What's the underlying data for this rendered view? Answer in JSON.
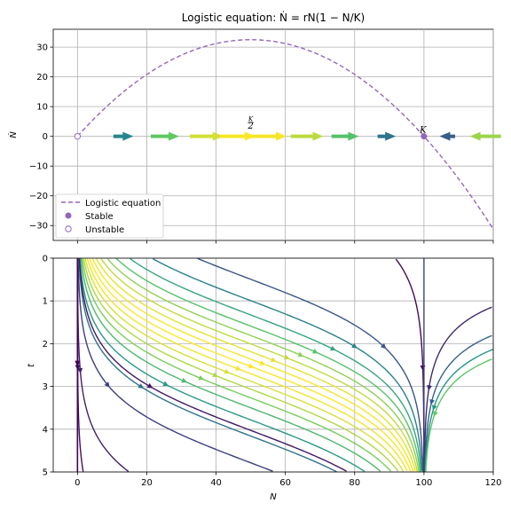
{
  "chart_data": [
    {
      "type": "line",
      "title": "Logistic equation: Ṅ = rN(1 − N/K)",
      "xlabel": "",
      "ylabel": "Ṅ",
      "xlim": [
        -7,
        120
      ],
      "ylim": [
        -35,
        36
      ],
      "xticks": [
        0,
        20,
        40,
        60,
        80,
        100,
        120
      ],
      "yticks": [
        -30,
        -20,
        -10,
        0,
        10,
        20,
        30
      ],
      "grid": true,
      "legend_placement": "lower-left",
      "params": {
        "r": 1.3,
        "K": 100
      },
      "series": [
        {
          "name": "Logistic equation",
          "style": "dashed",
          "color": "#9467bd"
        }
      ],
      "fixed_points": [
        {
          "name": "Stable",
          "x": 100,
          "y": 0,
          "filled": true
        },
        {
          "name": "Unstable",
          "x": 0,
          "y": 0,
          "filled": false
        }
      ],
      "annotations": [
        {
          "text": "K/2",
          "x": 50,
          "y": 0
        },
        {
          "text": "K",
          "x": 100,
          "y": 0
        }
      ],
      "flow_arrows": [
        {
          "x": 13,
          "dir": 1
        },
        {
          "x": 25,
          "dir": 1
        },
        {
          "x": 37,
          "dir": 1
        },
        {
          "x": 46,
          "dir": 1
        },
        {
          "x": 55,
          "dir": 1
        },
        {
          "x": 66,
          "dir": 1
        },
        {
          "x": 77,
          "dir": 1
        },
        {
          "x": 89,
          "dir": 1
        },
        {
          "x": 107,
          "dir": -1
        },
        {
          "x": 118,
          "dir": -1
        }
      ],
      "legend": [
        "Logistic equation",
        "Stable",
        "Unstable"
      ]
    },
    {
      "type": "line",
      "title": "",
      "xlabel": "N",
      "ylabel": "t",
      "xlim": [
        -7,
        120
      ],
      "ylim": [
        5,
        0
      ],
      "xticks": [
        0,
        20,
        40,
        60,
        80,
        100,
        120
      ],
      "yticks": [
        0,
        1,
        2,
        3,
        4,
        5
      ],
      "grid": true,
      "colormap": "viridis",
      "streamlines_description": "N(t) trajectories; N=0 unstable, N=100 stable"
    }
  ],
  "colors": {
    "curve": "#9467bd",
    "grid": "#b0b0b0"
  }
}
